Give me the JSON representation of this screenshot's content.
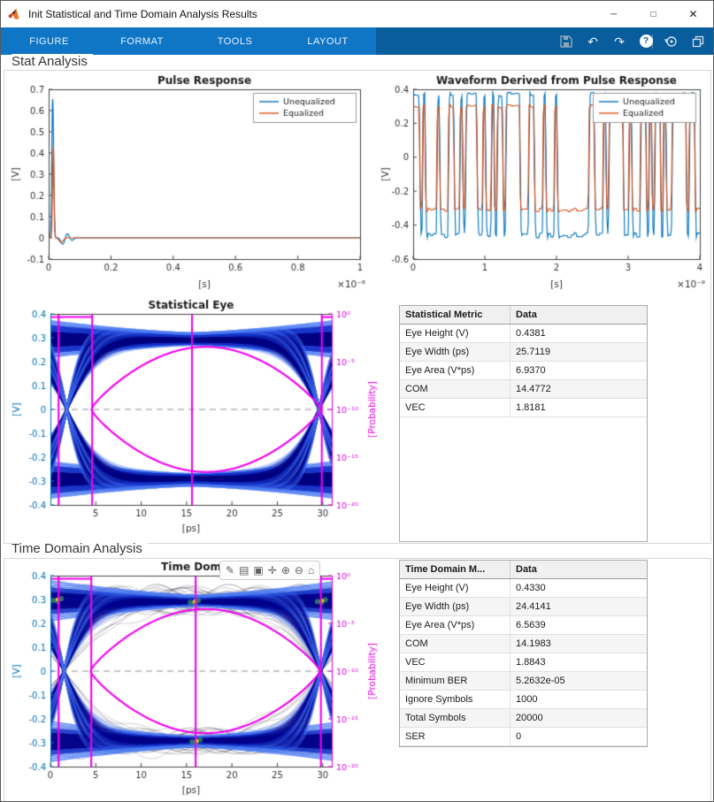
{
  "window": {
    "title": "Init Statistical and Time Domain Analysis Results",
    "minimize_glyph": "─",
    "maximize_glyph": "□",
    "close_glyph": "✕"
  },
  "ribbon": {
    "tabs": [
      {
        "label": "FIGURE"
      },
      {
        "label": "FORMAT"
      },
      {
        "label": "TOOLS"
      },
      {
        "label": "LAYOUT"
      }
    ],
    "qab": {
      "undo_glyph": "↶",
      "redo_glyph": "↷",
      "help_glyph": "?",
      "caret_glyph": "▾"
    }
  },
  "sections": {
    "stat": "Stat Analysis",
    "time": "Time Domain Analysis"
  },
  "axes_toolbar": [
    {
      "name": "edit-plot",
      "glyph": "✎"
    },
    {
      "name": "export",
      "glyph": "▤"
    },
    {
      "name": "data-tips",
      "glyph": "▣"
    },
    {
      "name": "pan",
      "glyph": "✛"
    },
    {
      "name": "zoom-in",
      "glyph": "⊕"
    },
    {
      "name": "zoom-out",
      "glyph": "⊖"
    },
    {
      "name": "restore-view",
      "glyph": "⌂"
    }
  ],
  "tables": {
    "stat": {
      "headers": [
        "Statistical Metric",
        "Data"
      ],
      "rows": [
        [
          "Eye Height (V)",
          "0.4381"
        ],
        [
          "Eye Width (ps)",
          "25.7119"
        ],
        [
          "Eye Area (V*ps)",
          "6.9370"
        ],
        [
          "COM",
          "14.4772"
        ],
        [
          "VEC",
          "1.8181"
        ]
      ]
    },
    "time": {
      "headers": [
        "Time Domain M...",
        "Data"
      ],
      "rows": [
        [
          "Eye Height (V)",
          "0.4330"
        ],
        [
          "Eye Width (ps)",
          "24.4141"
        ],
        [
          "Eye Area (V*ps)",
          "6.5639"
        ],
        [
          "COM",
          "14.1983"
        ],
        [
          "VEC",
          "1.8843"
        ],
        [
          "Minimum BER",
          "5.2632e-05"
        ],
        [
          "Ignore Symbols",
          "1000"
        ],
        [
          "Total Symbols",
          "20000"
        ],
        [
          "SER",
          "0"
        ]
      ]
    }
  },
  "chart_data": [
    {
      "id": "pulse",
      "type": "line",
      "title": "Pulse Response",
      "xlabel": "[s]",
      "ylabel": "[V]",
      "x_scale_label": "×10⁻⁸",
      "xlim": [
        0,
        1
      ],
      "ylim": [
        -0.1,
        0.7
      ],
      "xticks": [
        0,
        0.2,
        0.4,
        0.6,
        0.8,
        1
      ],
      "yticks": [
        -0.1,
        0,
        0.1,
        0.2,
        0.3,
        0.4,
        0.5,
        0.6,
        0.7
      ],
      "legend": [
        {
          "label": "Unequalized",
          "color": "#0072BD"
        },
        {
          "label": "Equalized",
          "color": "#D95319"
        }
      ],
      "series": [
        {
          "name": "Unequalized",
          "color": "#0072BD",
          "peak_v": 0.655,
          "peak_x": 0.013,
          "width": 0.004,
          "post_lobes": [
            [
              0.045,
              -0.03,
              0.008
            ],
            [
              0.06,
              0.02,
              0.007
            ],
            [
              0.075,
              -0.012,
              0.007
            ]
          ]
        },
        {
          "name": "Equalized",
          "color": "#D95319",
          "peak_v": 0.43,
          "peak_x": 0.015,
          "width": 0.0035,
          "post_lobes": [
            [
              0.04,
              -0.022,
              0.009
            ]
          ]
        }
      ]
    },
    {
      "id": "waveform",
      "type": "line",
      "title": "Waveform Derived from Pulse Response",
      "xlabel": "[s]",
      "ylabel": "[V]",
      "x_scale_label": "×10⁻⁹",
      "xlim": [
        0,
        4
      ],
      "ylim": [
        -0.6,
        0.4
      ],
      "xticks": [
        0,
        1,
        2,
        3,
        4
      ],
      "yticks": [
        -0.6,
        -0.4,
        -0.2,
        0,
        0.2,
        0.4
      ],
      "legend": [
        {
          "label": "Unequalized",
          "color": "#0072BD"
        },
        {
          "label": "Equalized",
          "color": "#D95319"
        }
      ],
      "symbols": 100,
      "seed": 20,
      "series": [
        {
          "name": "Unequalized",
          "color": "#0072BD",
          "high": 0.37,
          "low": -0.46,
          "edge": 0.75
        },
        {
          "name": "Equalized",
          "color": "#D95319",
          "high": 0.3,
          "low": -0.31,
          "edge": 0.45
        }
      ]
    },
    {
      "id": "stat_eye",
      "type": "eye-density",
      "style": "dense",
      "title": "Statistical Eye",
      "xlabel": "[ps]",
      "ylabel_left": "[V]",
      "ylabel_right": "[Probability]",
      "xlim": [
        0,
        31
      ],
      "ylim": [
        -0.4,
        0.4
      ],
      "xticks": [
        5,
        10,
        15,
        20,
        25,
        30
      ],
      "yticks": [
        -0.4,
        -0.3,
        -0.2,
        -0.1,
        0,
        0.1,
        0.2,
        0.3,
        0.4
      ],
      "right_ticks": [
        {
          "label": "10⁰",
          "exp": 0
        },
        {
          "label": "10⁻⁵",
          "exp": -5
        },
        {
          "label": "10⁻¹⁰",
          "exp": -10
        },
        {
          "label": "10⁻¹⁵",
          "exp": -15
        },
        {
          "label": "10⁻²⁰",
          "exp": -20
        }
      ],
      "level": 0.295,
      "crossings": [
        1.8,
        29.6
      ],
      "eye_center": 15.6,
      "spread": [
        0.025,
        0.05
      ],
      "seed": 7,
      "contour": {
        "x_start": 4.5,
        "x_end": 29.8,
        "peak": 0.262,
        "verticals": [
          0.9,
          4.6,
          15.6,
          29.9
        ],
        "plateau": 0.387
      },
      "colors": {
        "core": "#00007f",
        "mid": "#1535c8",
        "edge": "#4d7df2",
        "contour": "#f000f0",
        "left_axis": "#0072BD",
        "right_axis": "#e100e1"
      }
    },
    {
      "id": "time_eye",
      "type": "eye-density",
      "style": "sampled",
      "title": "Time Dom",
      "xlabel": "[ps]",
      "ylabel_left": "[V]",
      "ylabel_right": "[Probability]",
      "xlim": [
        0,
        31
      ],
      "ylim": [
        -0.4,
        0.4
      ],
      "xticks": [
        0,
        5,
        10,
        15,
        20,
        25,
        30
      ],
      "yticks": [
        -0.4,
        -0.3,
        -0.2,
        -0.1,
        0,
        0.1,
        0.2,
        0.3,
        0.4
      ],
      "right_ticks": [
        {
          "label": "10⁰",
          "exp": 0
        },
        {
          "label": "10⁻⁵",
          "exp": -5
        },
        {
          "label": "10⁻¹⁰",
          "exp": -10
        },
        {
          "label": "10⁻¹⁵",
          "exp": -15
        },
        {
          "label": "10⁻²⁰",
          "exp": -20
        }
      ],
      "level": 0.295,
      "crossings": [
        1.5,
        29.8
      ],
      "eye_center": 16.0,
      "spread": [
        0.022,
        0.06
      ],
      "seed": 99,
      "hotspots": [
        [
          15.9,
          0.292
        ],
        [
          16.1,
          -0.292
        ],
        [
          0.8,
          0.3
        ],
        [
          29.9,
          0.295
        ]
      ],
      "hotspot_colors": [
        "#ffe000",
        "#46c850"
      ],
      "contour": {
        "x_start": 4.4,
        "x_end": 29.7,
        "peak": 0.26,
        "verticals": [
          0.9,
          4.5,
          16.0,
          29.8
        ],
        "plateau": 0.387
      },
      "colors": {
        "core": "#000089",
        "mid": "#1535c8",
        "edge": "#4d7df2",
        "contour": "#f000f0",
        "left_axis": "#0072BD",
        "right_axis": "#e100e1"
      }
    }
  ]
}
